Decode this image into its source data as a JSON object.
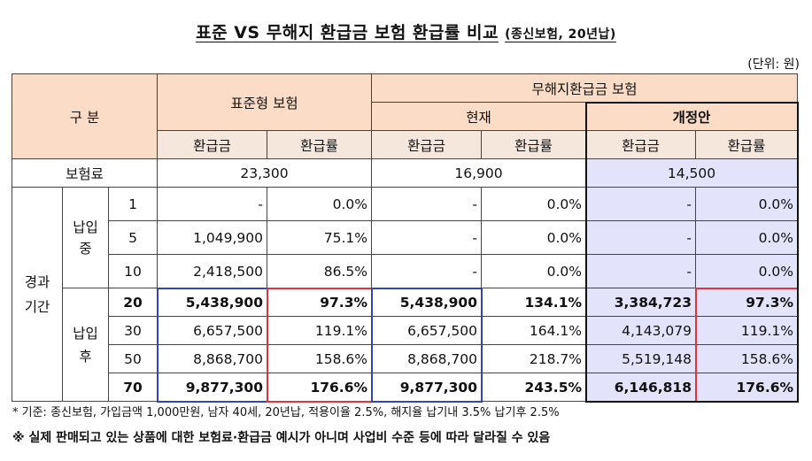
{
  "title": {
    "main": "표준 VS 무해지 환급금 보험 환급률 비교",
    "sub": "(종신보험, 20년납)"
  },
  "unit": "(단위: 원)",
  "header": {
    "division": "구 분",
    "standard": "표준형 보험",
    "no_refund": "무해지환급금 보험",
    "current": "현재",
    "revised": "개정안",
    "refund": "환급금",
    "rate": "환급률"
  },
  "premium_row": {
    "label": "보험료",
    "standard": "23,300",
    "current": "16,900",
    "revised": "14,500"
  },
  "row_groups": {
    "elapsed": "경과\n기간",
    "paying": "납입\n중",
    "after": "납입\n후"
  },
  "rows": [
    {
      "year": "1",
      "std_refund": "-",
      "std_rate": "0.0%",
      "cur_refund": "-",
      "cur_rate": "0.0%",
      "rev_refund": "-",
      "rev_rate": "0.0%"
    },
    {
      "year": "5",
      "std_refund": "1,049,900",
      "std_rate": "75.1%",
      "cur_refund": "-",
      "cur_rate": "0.0%",
      "rev_refund": "-",
      "rev_rate": "0.0%"
    },
    {
      "year": "10",
      "std_refund": "2,418,500",
      "std_rate": "86.5%",
      "cur_refund": "-",
      "cur_rate": "0.0%",
      "rev_refund": "-",
      "rev_rate": "0.0%"
    },
    {
      "year": "20",
      "std_refund": "5,438,900",
      "std_rate": "97.3%",
      "cur_refund": "5,438,900",
      "cur_rate": "134.1%",
      "rev_refund": "3,384,723",
      "rev_rate": "97.3%"
    },
    {
      "year": "30",
      "std_refund": "6,657,500",
      "std_rate": "119.1%",
      "cur_refund": "6,657,500",
      "cur_rate": "164.1%",
      "rev_refund": "4,143,079",
      "rev_rate": "119.1%"
    },
    {
      "year": "50",
      "std_refund": "8,868,700",
      "std_rate": "158.6%",
      "cur_refund": "8,868,700",
      "cur_rate": "218.7%",
      "rev_refund": "5,519,148",
      "rev_rate": "158.6%"
    },
    {
      "year": "70",
      "std_refund": "9,877,300",
      "std_rate": "176.6%",
      "cur_refund": "9,877,300",
      "cur_rate": "243.5%",
      "rev_refund": "6,146,818",
      "rev_rate": "176.6%"
    }
  ],
  "notes": {
    "basis": "* 기준: 종신보험, 가입금액 1,000만원, 남자 40세, 20년납, 적용이율 2.5%, 해지율 납기내 3.5% 납기후 2.5%",
    "disclaimer": "※ 실제 판매되고 있는 상품에 대한 보험료·환급금 예시가 아니며 사업비 수준 등에 따라 달라질 수 있음"
  },
  "colors": {
    "header_bg": "#fbdcc7",
    "revised_bg": "#e3e3fb",
    "highlight_blue": "#3344bb",
    "highlight_red": "#e0353d"
  }
}
